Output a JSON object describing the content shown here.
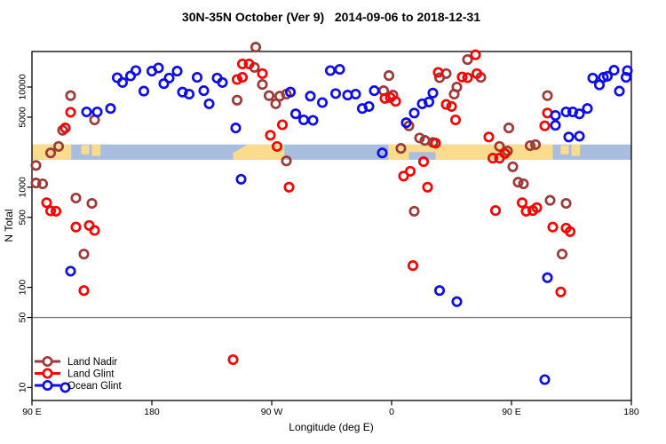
{
  "title": "30N-35N October (Ver 9)   2014-09-06 to 2018-12-31",
  "chart_data": {
    "type": "scatter",
    "title": "30N-35N October (Ver 9)   2014-09-06 to 2018-12-31",
    "xlabel": "Longitude (deg E)",
    "ylabel": "N Total",
    "grid": false,
    "legend_position": "bottom-left",
    "x_axis": {
      "note": "axis spans 450 degrees eastward starting at 90E (longitudes repeat)",
      "range": [
        90,
        540
      ],
      "ticks": [
        90,
        180,
        270,
        360,
        450,
        540
      ],
      "tick_labels": [
        "90 E",
        "180",
        "90 W",
        "0",
        "90 E",
        "180"
      ]
    },
    "y_axis": {
      "scale": "log",
      "range": [
        9,
        26000
      ],
      "ticks": [
        10000,
        5000,
        1000,
        500,
        100,
        50,
        10
      ],
      "tick_labels": [
        "10000",
        "5000",
        "1000",
        "500",
        "100",
        "50",
        "10"
      ]
    },
    "reference_line_y": 50,
    "reference_line_color": "#808080",
    "map_band": {
      "value_top": 2670,
      "value_bottom": 1880,
      "ocean_color": "#A9BDDF",
      "land_color": "#FBDB8C",
      "land_segments": [
        {
          "lon": [
            90,
            119.5
          ]
        },
        {
          "lon": [
            127,
            133
          ],
          "band_fraction": [
            0.05,
            0.65
          ]
        },
        {
          "lon": [
            135,
            141.5
          ],
          "band_fraction": [
            0.0,
            0.75
          ]
        },
        {
          "lon": [
            241,
            279.5
          ],
          "taper_top_left_lon": 252
        },
        {
          "lon": [
            357.5,
            481
          ],
          "notch_bottom_lon": [
            373,
            393
          ]
        },
        {
          "lon": [
            487,
            493
          ],
          "band_fraction": [
            0.05,
            0.65
          ]
        },
        {
          "lon": [
            495,
            501.5
          ],
          "band_fraction": [
            0.0,
            0.75
          ]
        }
      ]
    },
    "series": [
      {
        "name": "Land Nadir",
        "color": "#9E3A38",
        "points": [
          [
            119,
            8200
          ],
          [
            137,
            4700
          ],
          [
            113,
            3700
          ],
          [
            110,
            2550
          ],
          [
            104,
            2200
          ],
          [
            93,
            1650
          ],
          [
            93,
            1100
          ],
          [
            98,
            1080
          ],
          [
            123,
            780
          ],
          [
            135,
            690
          ],
          [
            129,
            215
          ],
          [
            244,
            7400
          ],
          [
            258,
            25000
          ],
          [
            257,
            15700
          ],
          [
            263,
            10600
          ],
          [
            268,
            8200
          ],
          [
            276,
            8100
          ],
          [
            273,
            6800
          ],
          [
            281,
            8500
          ],
          [
            281,
            1830
          ],
          [
            358,
            13000
          ],
          [
            354,
            9200
          ],
          [
            361,
            8300
          ],
          [
            373,
            4100
          ],
          [
            381,
            3100
          ],
          [
            385,
            2930
          ],
          [
            391,
            2800
          ],
          [
            367,
            2440
          ],
          [
            377,
            575
          ],
          [
            396,
            12400
          ],
          [
            401,
            13600
          ],
          [
            409,
            10000
          ],
          [
            407,
            8500
          ],
          [
            417,
            18800
          ],
          [
            427,
            12500
          ],
          [
            477,
            8200
          ],
          [
            448,
            3900
          ],
          [
            441,
            2550
          ],
          [
            447,
            2300
          ],
          [
            464,
            2600
          ],
          [
            468,
            2660
          ],
          [
            451,
            1600
          ],
          [
            455,
            1120
          ],
          [
            459,
            1080
          ],
          [
            479,
            740
          ],
          [
            491,
            690
          ],
          [
            488,
            215
          ]
        ]
      },
      {
        "name": "Land Glint",
        "color": "#F80400",
        "points": [
          [
            119,
            5600
          ],
          [
            115,
            3900
          ],
          [
            101,
            700
          ],
          [
            104,
            580
          ],
          [
            108,
            575
          ],
          [
            123,
            400
          ],
          [
            133,
            415
          ],
          [
            137,
            370
          ],
          [
            129,
            93
          ],
          [
            241,
            19
          ],
          [
            248,
            17000
          ],
          [
            253,
            17000
          ],
          [
            263,
            13600
          ],
          [
            248,
            12500
          ],
          [
            244,
            11900
          ],
          [
            278,
            4200
          ],
          [
            269,
            3300
          ],
          [
            274,
            2550
          ],
          [
            283,
            1000
          ],
          [
            355,
            7700
          ],
          [
            359,
            7850
          ],
          [
            363,
            7200
          ],
          [
            395,
            14000
          ],
          [
            401,
            6700
          ],
          [
            405,
            6400
          ],
          [
            393,
            2750
          ],
          [
            384,
            1800
          ],
          [
            369,
            1290
          ],
          [
            374,
            1440
          ],
          [
            387,
            1000
          ],
          [
            376,
            165
          ],
          [
            408,
            4700
          ],
          [
            423,
            21000
          ],
          [
            424,
            13600
          ],
          [
            417,
            12400
          ],
          [
            413,
            12600
          ],
          [
            433,
            3170
          ],
          [
            477,
            5500
          ],
          [
            475,
            4100
          ],
          [
            445,
            2170
          ],
          [
            441,
            1950
          ],
          [
            436,
            1950
          ],
          [
            458,
            700
          ],
          [
            438,
            585
          ],
          [
            461,
            575
          ],
          [
            466,
            585
          ],
          [
            469,
            625
          ],
          [
            481,
            400
          ],
          [
            491,
            390
          ],
          [
            494,
            360
          ],
          [
            487,
            90
          ]
        ]
      },
      {
        "name": "Ocean Glint",
        "color": "#0D0DEE",
        "points": [
          [
            154,
            12400
          ],
          [
            158,
            11100
          ],
          [
            164,
            12900
          ],
          [
            168,
            14600
          ],
          [
            131,
            5650
          ],
          [
            139,
            5650
          ],
          [
            149,
            6100
          ],
          [
            119,
            145
          ],
          [
            115,
            10
          ],
          [
            174,
            9100
          ],
          [
            180,
            14400
          ],
          [
            185,
            15500
          ],
          [
            189,
            10800
          ],
          [
            193,
            12300
          ],
          [
            199,
            14400
          ],
          [
            203,
            8900
          ],
          [
            208,
            8500
          ],
          [
            214,
            12500
          ],
          [
            219,
            9200
          ],
          [
            223,
            6800
          ],
          [
            229,
            12300
          ],
          [
            233,
            11100
          ],
          [
            243,
            3900
          ],
          [
            247,
            1200
          ],
          [
            284,
            8900
          ],
          [
            288,
            5400
          ],
          [
            294,
            4700
          ],
          [
            301,
            4650
          ],
          [
            299,
            8100
          ],
          [
            308,
            7000
          ],
          [
            314,
            14600
          ],
          [
            321,
            15000
          ],
          [
            318,
            8600
          ],
          [
            327,
            8300
          ],
          [
            333,
            8500
          ],
          [
            338,
            6100
          ],
          [
            343,
            6400
          ],
          [
            347,
            9200
          ],
          [
            377,
            5500
          ],
          [
            371,
            4400
          ],
          [
            383,
            6800
          ],
          [
            388,
            7100
          ],
          [
            391,
            8700
          ],
          [
            353,
            2200
          ],
          [
            396,
            93
          ],
          [
            409,
            72
          ],
          [
            483,
            5200
          ],
          [
            483,
            4150
          ],
          [
            477,
            125
          ],
          [
            475,
            12
          ],
          [
            491,
            5650
          ],
          [
            496,
            5650
          ],
          [
            501,
            5400
          ],
          [
            507,
            6100
          ],
          [
            493,
            3170
          ],
          [
            501,
            3230
          ],
          [
            511,
            12300
          ],
          [
            516,
            10500
          ],
          [
            519,
            12500
          ],
          [
            522,
            12800
          ],
          [
            527,
            14700
          ],
          [
            537,
            14600
          ],
          [
            536,
            12500
          ],
          [
            531,
            9100
          ]
        ]
      }
    ]
  }
}
